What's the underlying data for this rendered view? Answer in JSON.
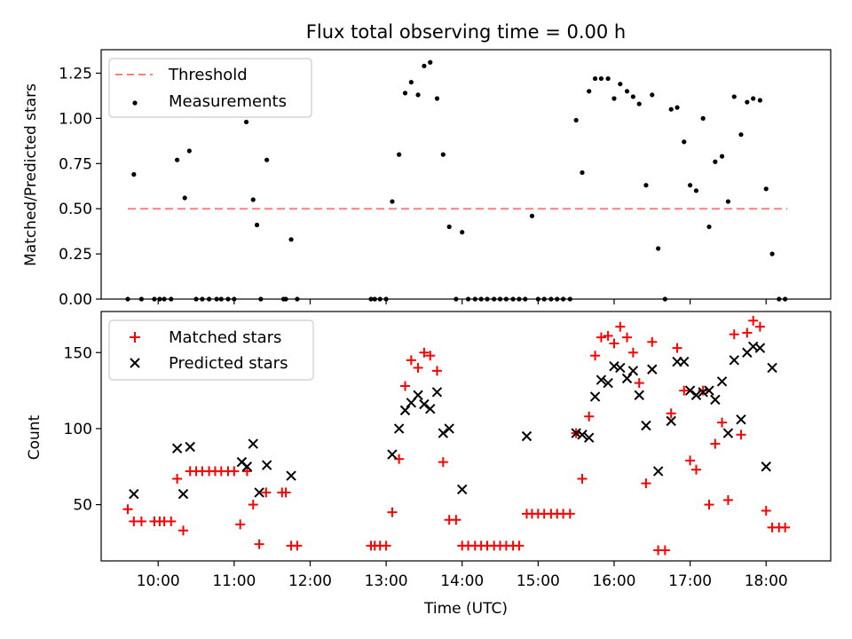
{
  "chart_data": [
    {
      "type": "scatter",
      "title": "Flux total observing time = 0.00 h",
      "ylabel": "Matched/Predicted stars",
      "xlabel": "",
      "xlim": [
        9.25,
        18.85
      ],
      "ylim": [
        0,
        1.38
      ],
      "yticks": [
        0.0,
        0.25,
        0.5,
        0.75,
        1.0,
        1.25
      ],
      "ytick_labels": [
        "0.00",
        "0.25",
        "0.50",
        "0.75",
        "1.00",
        "1.25"
      ],
      "legend_position": "upper-left",
      "series": [
        {
          "name": "Threshold",
          "kind": "dashed-line",
          "color": "#ff7f7f",
          "x": [
            9.6,
            18.28
          ],
          "y": [
            0.5,
            0.5
          ]
        },
        {
          "name": "Measurements",
          "kind": "dot",
          "color": "#000000",
          "x": [
            9.6,
            9.68,
            9.78,
            9.95,
            10.02,
            10.08,
            10.17,
            10.25,
            10.35,
            10.41,
            10.5,
            10.58,
            10.67,
            10.77,
            10.83,
            10.92,
            11.0,
            11.16,
            11.25,
            11.3,
            11.35,
            11.43,
            11.65,
            11.68,
            11.75,
            11.83,
            12.8,
            12.85,
            12.92,
            13.0,
            13.08,
            13.17,
            13.25,
            13.33,
            13.42,
            13.5,
            13.58,
            13.67,
            13.75,
            13.83,
            13.92,
            14.0,
            14.08,
            14.17,
            14.25,
            14.33,
            14.42,
            14.5,
            14.58,
            14.67,
            14.75,
            14.83,
            14.92,
            15.0,
            15.08,
            15.17,
            15.25,
            15.33,
            15.42,
            15.5,
            15.58,
            15.67,
            15.75,
            15.83,
            15.92,
            16.0,
            16.08,
            16.17,
            16.25,
            16.33,
            16.42,
            16.5,
            16.58,
            16.67,
            16.75,
            16.83,
            16.92,
            17.0,
            17.08,
            17.17,
            17.25,
            17.33,
            17.42,
            17.5,
            17.58,
            17.67,
            17.75,
            17.83,
            17.92,
            18.0,
            18.08,
            18.17,
            18.25
          ],
          "y": [
            0.0,
            0.69,
            0.0,
            0.0,
            0.0,
            0.0,
            0.0,
            0.77,
            0.56,
            0.82,
            0.0,
            0.0,
            0.0,
            0.0,
            0.0,
            0.0,
            0.0,
            0.98,
            0.55,
            0.41,
            0.0,
            0.77,
            0.0,
            0.0,
            0.33,
            0.0,
            0.0,
            0.0,
            0.0,
            0.0,
            0.54,
            0.8,
            1.14,
            1.2,
            1.13,
            1.29,
            1.31,
            1.11,
            0.8,
            0.4,
            0.0,
            0.37,
            0.0,
            0.0,
            0.0,
            0.0,
            0.0,
            0.0,
            0.0,
            0.0,
            0.0,
            0.0,
            0.46,
            0.0,
            0.0,
            0.0,
            0.0,
            0.0,
            0.0,
            0.99,
            0.7,
            1.15,
            1.22,
            1.22,
            1.22,
            1.11,
            1.19,
            1.15,
            1.12,
            1.08,
            0.63,
            1.13,
            0.28,
            0.0,
            1.05,
            1.06,
            0.87,
            0.63,
            0.6,
            1.0,
            0.4,
            0.76,
            0.79,
            0.54,
            1.12,
            0.91,
            1.09,
            1.11,
            1.1,
            0.61,
            0.25,
            0.0,
            0.0
          ]
        }
      ]
    },
    {
      "type": "scatter",
      "title": "",
      "ylabel": "Count",
      "xlabel": "Time (UTC)",
      "xlim": [
        9.25,
        18.85
      ],
      "ylim": [
        13,
        177
      ],
      "yticks": [
        50,
        100,
        150
      ],
      "ytick_labels": [
        "50",
        "100",
        "150"
      ],
      "xticks": [
        10,
        11,
        12,
        13,
        14,
        15,
        16,
        17,
        18
      ],
      "xtick_labels": [
        "10:00",
        "11:00",
        "12:00",
        "13:00",
        "14:00",
        "15:00",
        "16:00",
        "17:00",
        "18:00"
      ],
      "legend_position": "upper-left",
      "series": [
        {
          "name": "Matched stars",
          "kind": "plus",
          "color": "#ff0000",
          "x": [
            9.6,
            9.68,
            9.78,
            9.95,
            10.02,
            10.08,
            10.17,
            10.25,
            10.33,
            10.42,
            10.5,
            10.58,
            10.67,
            10.75,
            10.83,
            10.92,
            11.0,
            11.08,
            11.17,
            11.25,
            11.33,
            11.42,
            11.63,
            11.68,
            11.75,
            11.83,
            12.8,
            12.85,
            12.92,
            13.0,
            13.08,
            13.17,
            13.25,
            13.33,
            13.42,
            13.5,
            13.58,
            13.67,
            13.75,
            13.83,
            13.92,
            14.0,
            14.08,
            14.17,
            14.25,
            14.33,
            14.42,
            14.5,
            14.58,
            14.67,
            14.75,
            14.85,
            14.92,
            15.0,
            15.08,
            15.17,
            15.25,
            15.33,
            15.42,
            15.5,
            15.58,
            15.67,
            15.75,
            15.83,
            15.92,
            16.0,
            16.08,
            16.17,
            16.25,
            16.33,
            16.42,
            16.5,
            16.58,
            16.67,
            16.75,
            16.83,
            16.92,
            17.0,
            17.08,
            17.17,
            17.25,
            17.33,
            17.42,
            17.5,
            17.58,
            17.67,
            17.75,
            17.83,
            17.92,
            18.0,
            18.08,
            18.17,
            18.25
          ],
          "y": [
            47,
            39,
            39,
            39,
            39,
            39,
            39,
            67,
            33,
            72,
            72,
            72,
            72,
            72,
            72,
            72,
            72,
            37,
            72,
            50,
            24,
            58,
            58,
            58,
            23,
            23,
            23,
            23,
            23,
            23,
            45,
            80,
            128,
            145,
            140,
            150,
            148,
            138,
            78,
            40,
            40,
            23,
            23,
            23,
            23,
            23,
            23,
            23,
            23,
            23,
            23,
            44,
            44,
            44,
            44,
            44,
            44,
            44,
            44,
            97,
            67,
            108,
            148,
            160,
            161,
            156,
            167,
            160,
            150,
            130,
            64,
            157,
            20,
            20,
            110,
            153,
            125,
            79,
            73,
            125,
            50,
            90,
            104,
            53,
            162,
            96,
            163,
            171,
            167,
            46,
            35,
            35,
            35
          ]
        },
        {
          "name": "Predicted stars",
          "kind": "x",
          "color": "#000000",
          "x": [
            9.68,
            10.25,
            10.33,
            10.42,
            11.1,
            11.17,
            11.25,
            11.33,
            11.43,
            11.75,
            13.08,
            13.17,
            13.25,
            13.33,
            13.42,
            13.5,
            13.58,
            13.67,
            13.75,
            13.83,
            14.0,
            14.85,
            15.5,
            15.58,
            15.67,
            15.75,
            15.83,
            15.92,
            16.0,
            16.08,
            16.17,
            16.25,
            16.33,
            16.42,
            16.5,
            16.58,
            16.75,
            16.83,
            16.92,
            17.0,
            17.08,
            17.17,
            17.25,
            17.33,
            17.42,
            17.5,
            17.58,
            17.67,
            17.75,
            17.83,
            17.92,
            18.0,
            18.08
          ],
          "y": [
            57,
            87,
            57,
            88,
            78,
            75,
            90,
            58,
            76,
            69,
            83,
            100,
            112,
            117,
            122,
            116,
            113,
            124,
            97,
            100,
            60,
            95,
            97,
            96,
            94,
            121,
            132,
            130,
            141,
            140,
            133,
            138,
            122,
            102,
            139,
            72,
            105,
            144,
            144,
            125,
            122,
            124,
            125,
            119,
            131,
            97,
            145,
            106,
            150,
            154,
            153,
            75,
            140
          ]
        }
      ]
    }
  ]
}
